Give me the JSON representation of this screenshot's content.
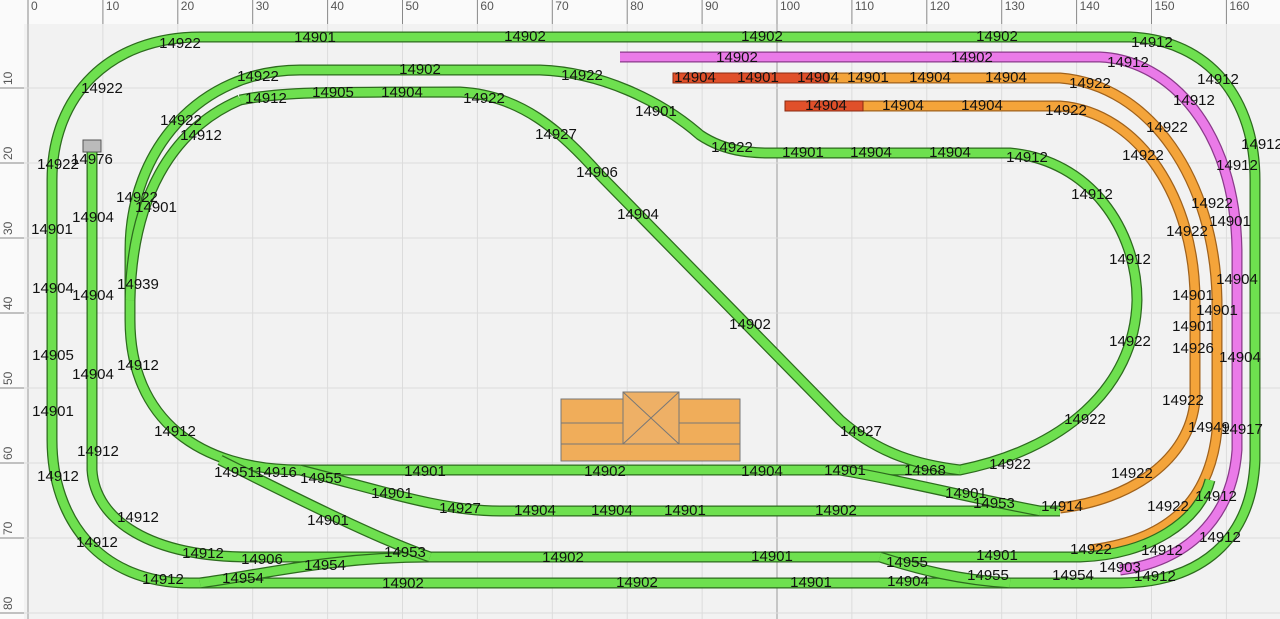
{
  "ruler": {
    "top": [
      0,
      10,
      20,
      30,
      40,
      50,
      60,
      70,
      80,
      90,
      100,
      110,
      120,
      130,
      140,
      150,
      160
    ],
    "left": [
      10,
      20,
      30,
      40,
      50,
      60,
      70,
      80
    ]
  },
  "labels": [
    "14922",
    "14901",
    "14902",
    "14902",
    "14902",
    "14912",
    "14902",
    "14902",
    "14912",
    "14922",
    "14902",
    "14922",
    "14904",
    "14901",
    "14904",
    "14901",
    "14904",
    "14904",
    "14922",
    "14912",
    "14912",
    "14922",
    "14912",
    "14905",
    "14904",
    "14922",
    "14901",
    "14904",
    "14904",
    "14904",
    "14922",
    "14922",
    "14912",
    "14927",
    "14922",
    "14976",
    "14922",
    "14922",
    "14901",
    "14904",
    "14904",
    "14912",
    "14922",
    "14912",
    "14912",
    "14906",
    "14912",
    "14922",
    "14922",
    "14901",
    "14904",
    "14904",
    "14901",
    "14922",
    "14901",
    "14912",
    "14939",
    "14904",
    "14904",
    "14904",
    "14901",
    "14901",
    "14902",
    "14901",
    "14922",
    "14926",
    "14904",
    "14905",
    "14912",
    "14904",
    "14922",
    "14922",
    "14901",
    "14927",
    "14912",
    "14949",
    "14917",
    "14912",
    "14922",
    "14968",
    "14912",
    "14951",
    "14916",
    "14955",
    "14901",
    "14902",
    "14904",
    "14901",
    "14922",
    "14901",
    "14901",
    "14953",
    "14914",
    "14922",
    "14912",
    "14927",
    "14904",
    "14904",
    "14901",
    "14902",
    "14912",
    "14901",
    "14912",
    "14912",
    "14912",
    "14906",
    "14953",
    "14902",
    "14901",
    "14955",
    "14901",
    "14922",
    "14912",
    "14954",
    "14903",
    "14955",
    "14954",
    "14912",
    "14912",
    "14954",
    "14902",
    "14902",
    "14901",
    "14904"
  ]
}
